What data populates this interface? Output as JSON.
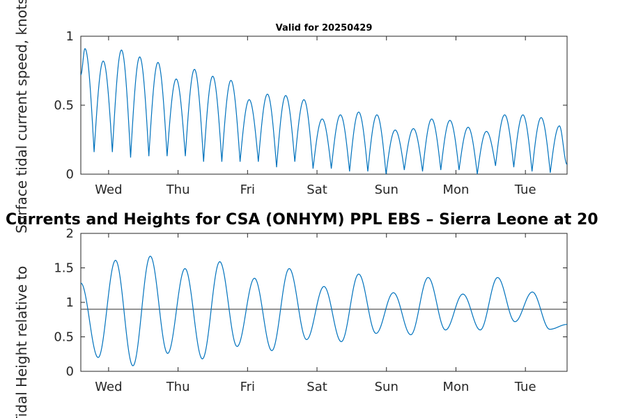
{
  "chart_data": [
    {
      "type": "line",
      "title": "Valid for 20250429",
      "ylabel": "Surface tidal current speed, knots",
      "ylim": [
        0,
        1
      ],
      "xlim": [
        0,
        7
      ],
      "yticks": [
        0,
        0.5,
        1
      ],
      "ytick_labels": [
        "0",
        "0.5",
        "1"
      ],
      "xtick_labels": [
        "Wed",
        "Thu",
        "Fri",
        "Sat",
        "Sun",
        "Mon",
        "Tue"
      ],
      "series_color": "#0072BD",
      "series": [
        {
          "peaks": [
            0.91,
            0.82,
            0.9,
            0.85,
            0.81,
            0.69,
            0.76,
            0.71,
            0.68,
            0.54,
            0.58,
            0.57,
            0.54,
            0.4,
            0.43,
            0.45,
            0.43,
            0.32,
            0.33,
            0.4,
            0.39,
            0.34,
            0.31,
            0.43,
            0.43,
            0.41,
            0.35
          ],
          "troughs": [
            0.16,
            0.16,
            0.12,
            0.13,
            0.13,
            0.13,
            0.09,
            0.09,
            0.09,
            0.09,
            0.05,
            0.09,
            0.04,
            0.04,
            0.02,
            0.02,
            0.0,
            0.03,
            0.02,
            0.03,
            0.03,
            0.0,
            0.06,
            0.05,
            0.02,
            0.01
          ]
        }
      ]
    },
    {
      "type": "line",
      "title": "Currents and Heights for CSA (ONHYM) PPL EBS  – Sierra Leone at 20",
      "ylabel": "Tidal Height relative to",
      "ylim": [
        0,
        2
      ],
      "xlim": [
        0,
        7
      ],
      "yticks": [
        0,
        0.5,
        1,
        1.5,
        2
      ],
      "ytick_labels": [
        "0",
        "0.5",
        "1",
        "1.5",
        "2"
      ],
      "xtick_labels": [
        "Wed",
        "Thu",
        "Fri",
        "Sat",
        "Sun",
        "Mon",
        "Tue"
      ],
      "reference_line": 0.9,
      "reference_color": "#555555",
      "series_color": "#0072BD",
      "series": [
        {
          "extrema": [
            1.28,
            0.2,
            1.61,
            0.08,
            1.67,
            0.26,
            1.49,
            0.18,
            1.59,
            0.36,
            1.35,
            0.3,
            1.49,
            0.46,
            1.23,
            0.43,
            1.41,
            0.55,
            1.14,
            0.53,
            1.36,
            0.6,
            1.12,
            0.6,
            1.36,
            0.72,
            1.15,
            0.61,
            0.68
          ]
        }
      ]
    }
  ]
}
